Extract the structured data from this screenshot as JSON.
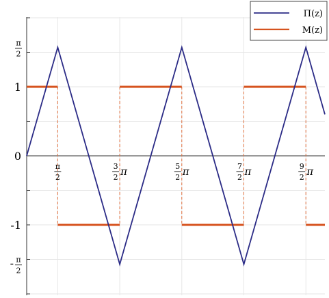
{
  "chart_data": {
    "type": "line",
    "title": "",
    "xlabel": "",
    "ylabel": "",
    "xlim": [
      0,
      15.1
    ],
    "ylim": [
      -2.0,
      2.0
    ],
    "grid": true,
    "legend_position": "top-right",
    "colors": {
      "pi": "#2b2b86",
      "m": "#d6531f",
      "m_dashed": "#e0703f",
      "grid": "#e6e6e6",
      "axis": "#333333"
    },
    "x_ticks": [
      {
        "value": 1.5708,
        "num": "π",
        "den": "2",
        "suffix": ""
      },
      {
        "value": 4.7124,
        "num": "3",
        "den": "2",
        "suffix": "π"
      },
      {
        "value": 7.854,
        "num": "5",
        "den": "2",
        "suffix": "π"
      },
      {
        "value": 10.9956,
        "num": "7",
        "den": "2",
        "suffix": "π"
      },
      {
        "value": 14.1372,
        "num": "9",
        "den": "2",
        "suffix": "π"
      }
    ],
    "y_ticks": [
      {
        "value": 1.5708,
        "kind": "frac",
        "sign": "",
        "num": "π",
        "den": "2"
      },
      {
        "value": 1,
        "kind": "plain",
        "label": "1"
      },
      {
        "value": 0,
        "kind": "plain",
        "label": "0"
      },
      {
        "value": -1,
        "kind": "plain",
        "label": "-1"
      },
      {
        "value": -1.5708,
        "kind": "frac",
        "sign": "-",
        "num": "π",
        "den": "2"
      }
    ],
    "series": [
      {
        "name": "Π(z)",
        "style": "solid",
        "x": [
          0,
          1.5708,
          4.7124,
          7.854,
          10.9956,
          14.1372,
          15.1
        ],
        "y": [
          0,
          1.5708,
          -1.5708,
          1.5708,
          -1.5708,
          1.5708,
          0.6
        ]
      },
      {
        "name": "M(z)",
        "style": "step",
        "segments": [
          {
            "x0": 0,
            "x1": 1.5708,
            "y": 1
          },
          {
            "x0": 1.5708,
            "x1": 4.7124,
            "y": -1
          },
          {
            "x0": 4.7124,
            "x1": 7.854,
            "y": 1
          },
          {
            "x0": 7.854,
            "x1": 10.9956,
            "y": -1
          },
          {
            "x0": 10.9956,
            "x1": 14.1372,
            "y": 1
          },
          {
            "x0": 14.1372,
            "x1": 15.1,
            "y": -1
          }
        ],
        "jumps": [
          1.5708,
          4.7124,
          7.854,
          10.9956,
          14.1372
        ]
      }
    ]
  }
}
